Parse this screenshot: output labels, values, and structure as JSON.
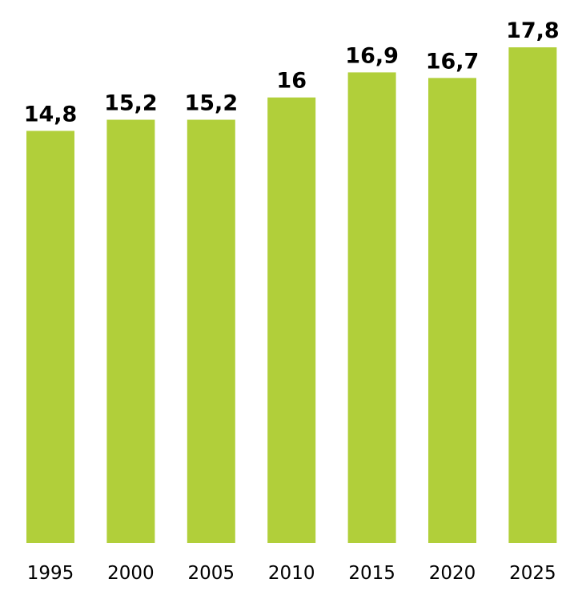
{
  "chart_data": {
    "type": "bar",
    "categories": [
      "1995",
      "2000",
      "2005",
      "2010",
      "2015",
      "2020",
      "2025"
    ],
    "values": [
      14.8,
      15.2,
      15.2,
      16,
      16.9,
      16.7,
      17.8
    ],
    "data_labels": [
      "14,8",
      "15,2",
      "15,2",
      "16",
      "16,9",
      "16,7",
      "17,8"
    ],
    "title": "",
    "xlabel": "",
    "ylabel": "",
    "ylim": [
      0,
      19.5
    ],
    "grid": false,
    "legend": "none",
    "bar_color": "#b1cf3a"
  }
}
